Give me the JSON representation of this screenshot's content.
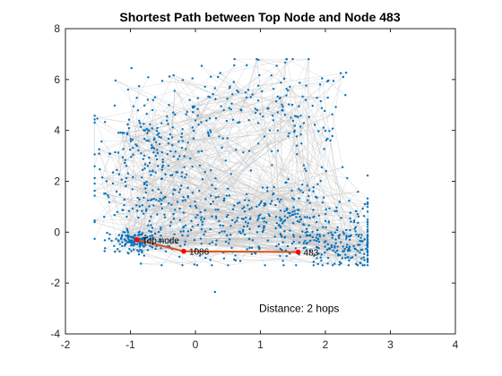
{
  "chart_data": {
    "type": "scatter",
    "title": "Shortest Path between Top Node and Node 483",
    "xlabel": "",
    "ylabel": "",
    "xlim": [
      -2,
      4
    ],
    "ylim": [
      -4,
      8
    ],
    "xticks": [
      -2,
      -1,
      0,
      1,
      2,
      3,
      4
    ],
    "yticks": [
      -4,
      -2,
      0,
      2,
      4,
      6,
      8
    ],
    "grid": false,
    "legend": "none",
    "colors": {
      "node": "#0072BD",
      "edge": "#BFBFBF",
      "path": "#D95319",
      "path_node": "#FF0000"
    },
    "path": [
      {
        "label": "Top node",
        "x": -0.9,
        "y": -0.3
      },
      {
        "label": "1086",
        "x": -0.18,
        "y": -0.75
      },
      {
        "label": "483",
        "x": 1.58,
        "y": -0.78
      }
    ],
    "annotation": {
      "text": "Distance: 2 hops",
      "x": 0.98,
      "y": -3.0
    },
    "clusters": [
      {
        "cx": -0.7,
        "cy": 2.7,
        "sx": 0.45,
        "sy": 1.5,
        "n": 260
      },
      {
        "cx": 0.45,
        "cy": 4.8,
        "sx": 0.55,
        "sy": 0.9,
        "n": 90
      },
      {
        "cx": 1.6,
        "cy": 4.4,
        "sx": 0.45,
        "sy": 1.2,
        "n": 90
      },
      {
        "cx": 1.5,
        "cy": 0.4,
        "sx": 0.75,
        "sy": 0.9,
        "n": 280
      },
      {
        "cx": 2.25,
        "cy": -0.6,
        "sx": 0.3,
        "sy": 0.45,
        "n": 140
      },
      {
        "cx": -0.9,
        "cy": -0.35,
        "sx": 0.22,
        "sy": 0.22,
        "n": 140
      },
      {
        "cx": 0.3,
        "cy": 0.3,
        "sx": 0.6,
        "sy": 0.6,
        "n": 110
      }
    ],
    "edge_count": 1800
  }
}
